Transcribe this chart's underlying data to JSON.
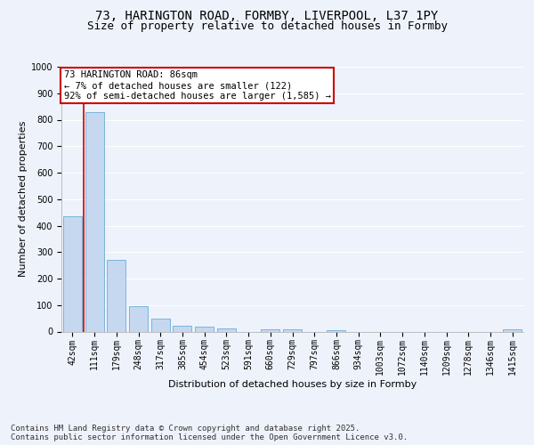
{
  "title_line1": "73, HARINGTON ROAD, FORMBY, LIVERPOOL, L37 1PY",
  "title_line2": "Size of property relative to detached houses in Formby",
  "xlabel": "Distribution of detached houses by size in Formby",
  "ylabel": "Number of detached properties",
  "categories": [
    "42sqm",
    "111sqm",
    "179sqm",
    "248sqm",
    "317sqm",
    "385sqm",
    "454sqm",
    "523sqm",
    "591sqm",
    "660sqm",
    "729sqm",
    "797sqm",
    "866sqm",
    "934sqm",
    "1003sqm",
    "1072sqm",
    "1140sqm",
    "1209sqm",
    "1278sqm",
    "1346sqm",
    "1415sqm"
  ],
  "values": [
    435,
    830,
    270,
    95,
    50,
    23,
    18,
    12,
    0,
    10,
    10,
    0,
    5,
    0,
    0,
    0,
    0,
    0,
    0,
    0,
    8
  ],
  "bar_color": "#c5d8f0",
  "bar_edge_color": "#6baed6",
  "annotation_box_text": "73 HARINGTON ROAD: 86sqm\n← 7% of detached houses are smaller (122)\n92% of semi-detached houses are larger (1,585) →",
  "annotation_box_color": "#ffffff",
  "annotation_box_edge_color": "#cc0000",
  "vline_color": "#cc0000",
  "ylim": [
    0,
    1000
  ],
  "yticks": [
    0,
    100,
    200,
    300,
    400,
    500,
    600,
    700,
    800,
    900,
    1000
  ],
  "bg_color": "#eef2fb",
  "grid_color": "#ffffff",
  "footer_line1": "Contains HM Land Registry data © Crown copyright and database right 2025.",
  "footer_line2": "Contains public sector information licensed under the Open Government Licence v3.0.",
  "title_fontsize": 10,
  "subtitle_fontsize": 9,
  "axis_label_fontsize": 8,
  "tick_fontsize": 7,
  "annotation_fontsize": 7.5,
  "footer_fontsize": 6.5
}
